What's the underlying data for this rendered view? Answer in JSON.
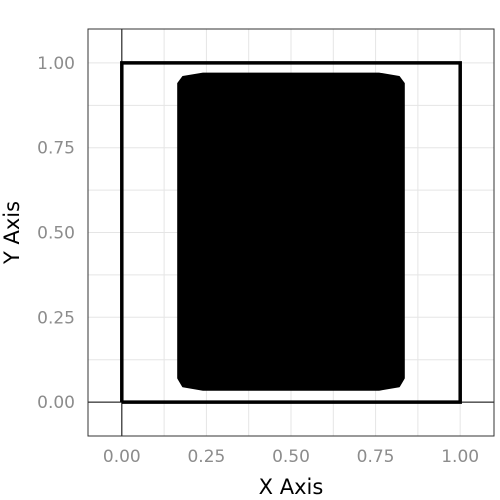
{
  "chart_data": {
    "type": "area",
    "title": "",
    "xlabel": "X Axis",
    "ylabel": "Y Axis",
    "xlim": [
      -0.1,
      1.1
    ],
    "ylim": [
      -0.1,
      1.1
    ],
    "x_ticks": [
      0.0,
      0.25,
      0.5,
      0.75,
      1.0
    ],
    "y_ticks": [
      0.0,
      0.25,
      0.5,
      0.75,
      1.0
    ],
    "x_tick_labels": [
      "0.00",
      "0.25",
      "0.50",
      "0.75",
      "1.00"
    ],
    "y_tick_labels": [
      "0.00",
      "0.25",
      "0.50",
      "0.75",
      "1.00"
    ],
    "grid": true,
    "reference_lines": {
      "x": 0,
      "y": 0
    },
    "shapes": [
      {
        "name": "outer-square",
        "kind": "outline",
        "color": "#000000",
        "x": [
          0,
          1,
          1,
          0,
          0
        ],
        "y": [
          0,
          0,
          1,
          1,
          0
        ]
      },
      {
        "name": "rounded-rectangle",
        "kind": "filled",
        "color": "#000000",
        "x": [
          0.24,
          0.76,
          0.82,
          0.835,
          0.835,
          0.82,
          0.76,
          0.24,
          0.18,
          0.165,
          0.165,
          0.18,
          0.24
        ],
        "y": [
          0.035,
          0.035,
          0.045,
          0.07,
          0.94,
          0.96,
          0.97,
          0.97,
          0.96,
          0.94,
          0.07,
          0.045,
          0.035
        ]
      }
    ]
  }
}
